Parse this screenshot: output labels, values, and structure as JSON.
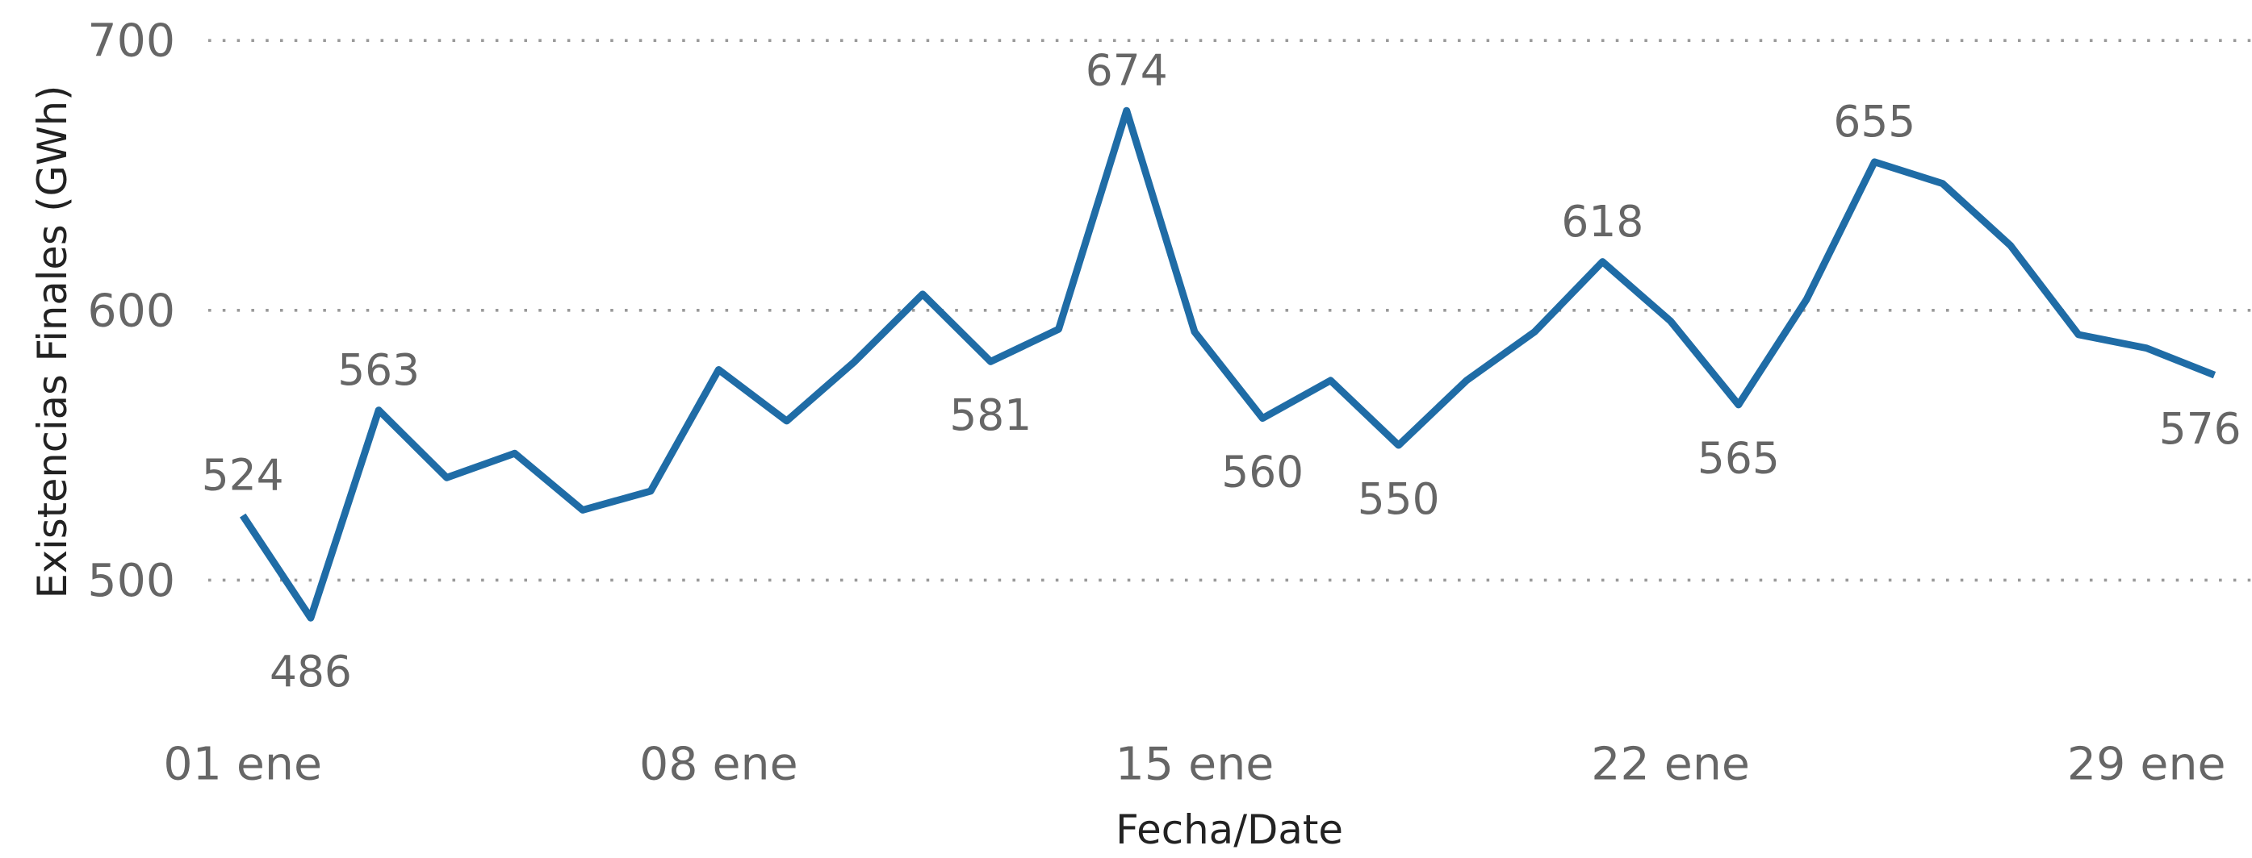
{
  "chart_data": {
    "type": "line",
    "x_label": "Fecha/Date",
    "y_label": "Existencias Finales (GWh)",
    "categories": [
      "01 ene",
      null,
      null,
      null,
      null,
      null,
      null,
      "08 ene",
      null,
      null,
      null,
      null,
      null,
      null,
      "15 ene",
      null,
      null,
      null,
      null,
      null,
      null,
      "22 ene",
      null,
      null,
      null,
      null,
      null,
      null,
      "29 ene",
      null
    ],
    "series": [
      {
        "name": "Existencias Finales",
        "color": "#1f6ca6",
        "values": [
          524,
          486,
          563,
          538,
          547,
          526,
          533,
          578,
          559,
          581,
          606,
          581,
          593,
          674,
          592,
          560,
          574,
          550,
          574,
          592,
          618,
          596,
          565,
          604,
          655,
          647,
          624,
          591,
          586,
          576
        ],
        "value_labels": [
          "524",
          "486",
          "563",
          null,
          null,
          null,
          null,
          null,
          null,
          null,
          null,
          "581",
          null,
          "674",
          null,
          "560",
          null,
          "550",
          null,
          null,
          "618",
          null,
          "565",
          null,
          "655",
          null,
          null,
          null,
          null,
          "576"
        ]
      }
    ],
    "ylim": [
      460,
      715
    ],
    "yticks": [
      500,
      600,
      700
    ],
    "grid": true
  }
}
